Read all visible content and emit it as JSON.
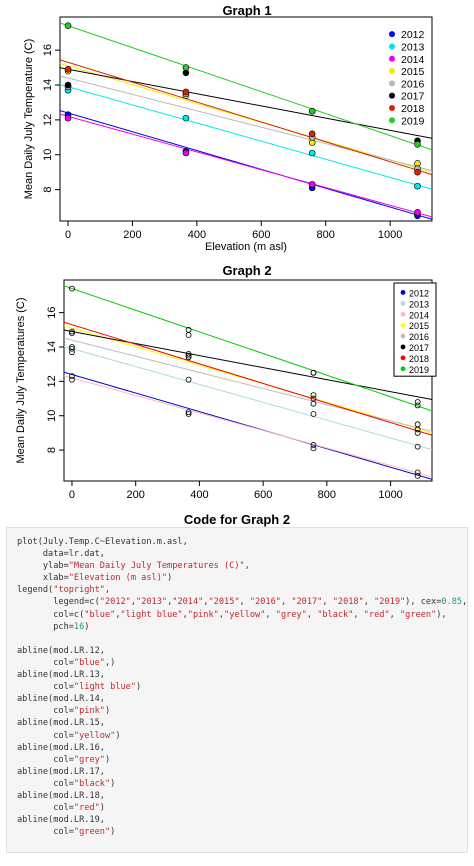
{
  "graph1_title": "Graph 1",
  "graph2_title": "Graph 2",
  "code_title": "Code for Graph 2",
  "colors": {
    "2012": "#0000ee",
    "2013": "#00e5ee",
    "2014": "#ee00ee",
    "2015": "#eeee00",
    "2016": "#b8b8b8",
    "2017": "#000000",
    "2018": "#dd2200",
    "2019": "#22cc22"
  },
  "chart_data": [
    {
      "type": "scatter",
      "title": "Graph 1",
      "xlabel": "Elevation (m asl)",
      "ylabel": "Mean Daily July Temperature (C)",
      "xlim": [
        -25,
        1130
      ],
      "ylim": [
        6.2,
        17.9
      ],
      "xticks": [
        0,
        200,
        400,
        600,
        800,
        1000
      ],
      "yticks": [
        8,
        10,
        12,
        14,
        16
      ],
      "legend_position": "top-right",
      "point_style": "filled",
      "series": [
        {
          "name": "2012",
          "color": "#0000ee",
          "x": [
            0,
            366,
            758,
            1085
          ],
          "y": [
            12.3,
            10.2,
            8.1,
            6.5
          ],
          "fit": [
            12.4,
            -0.0054
          ]
        },
        {
          "name": "2013",
          "color": "#00e5ee",
          "x": [
            0,
            366,
            758,
            1085
          ],
          "y": [
            13.7,
            12.1,
            10.1,
            8.2
          ],
          "fit": [
            13.9,
            -0.0052
          ]
        },
        {
          "name": "2014",
          "color": "#ee00ee",
          "x": [
            0,
            366,
            758,
            1085
          ],
          "y": [
            12.1,
            10.1,
            8.3,
            6.7
          ],
          "fit": [
            12.2,
            -0.0051
          ]
        },
        {
          "name": "2015",
          "color": "#eeee00",
          "x": [
            0,
            366,
            758,
            1085
          ],
          "y": [
            14.8,
            13.4,
            10.7,
            9.5
          ],
          "fit": [
            15.1,
            -0.0054
          ]
        },
        {
          "name": "2016",
          "color": "#b8b8b8",
          "x": [
            0,
            366,
            758,
            1085
          ],
          "y": [
            13.9,
            13.5,
            11.0,
            9.2
          ],
          "fit": [
            14.4,
            -0.0047
          ]
        },
        {
          "name": "2017",
          "color": "#000000",
          "x": [
            0,
            366,
            758,
            1085
          ],
          "y": [
            14.0,
            14.7,
            12.5,
            10.8
          ],
          "fit": [
            14.9,
            -0.0035
          ]
        },
        {
          "name": "2018",
          "color": "#dd2200",
          "x": [
            0,
            366,
            758,
            1085
          ],
          "y": [
            14.9,
            13.6,
            11.2,
            9.0
          ],
          "fit": [
            15.3,
            -0.0057
          ]
        },
        {
          "name": "2019",
          "color": "#22cc22",
          "x": [
            0,
            366,
            758,
            1085
          ],
          "y": [
            17.4,
            15.0,
            12.5,
            10.6
          ],
          "fit": [
            17.4,
            -0.0063
          ]
        }
      ]
    },
    {
      "type": "scatter",
      "title": "Graph 2",
      "xlabel": "",
      "ylabel": "Mean Daily July Temperatures (C)",
      "xlim": [
        -25,
        1130
      ],
      "ylim": [
        6.2,
        17.9
      ],
      "xticks": [
        0,
        200,
        400,
        600,
        800,
        1000
      ],
      "yticks": [
        8,
        10,
        12,
        14,
        16
      ],
      "legend_position": "top-right",
      "point_style": "open",
      "series": [
        {
          "name": "2012",
          "color": "blue",
          "x": [
            0,
            366,
            758,
            1085
          ],
          "y": [
            12.3,
            10.2,
            8.1,
            6.5
          ],
          "fit": [
            12.4,
            -0.0054
          ]
        },
        {
          "name": "2013",
          "color": "light blue",
          "x": [
            0,
            366,
            758,
            1085
          ],
          "y": [
            13.7,
            12.1,
            10.1,
            8.2
          ],
          "fit": [
            13.9,
            -0.0052
          ]
        },
        {
          "name": "2014",
          "color": "pink",
          "x": [
            0,
            366,
            758,
            1085
          ],
          "y": [
            12.1,
            10.1,
            8.3,
            6.7
          ],
          "fit": [
            12.2,
            -0.0051
          ]
        },
        {
          "name": "2015",
          "color": "yellow",
          "x": [
            0,
            366,
            758,
            1085
          ],
          "y": [
            14.8,
            13.4,
            10.7,
            9.5
          ],
          "fit": [
            15.1,
            -0.0054
          ]
        },
        {
          "name": "2016",
          "color": "grey",
          "x": [
            0,
            366,
            758,
            1085
          ],
          "y": [
            13.9,
            13.5,
            11.0,
            9.2
          ],
          "fit": [
            14.4,
            -0.0047
          ]
        },
        {
          "name": "2017",
          "color": "black",
          "x": [
            0,
            366,
            758,
            1085
          ],
          "y": [
            14.0,
            14.7,
            12.5,
            10.8
          ],
          "fit": [
            14.9,
            -0.0035
          ]
        },
        {
          "name": "2018",
          "color": "red",
          "x": [
            0,
            366,
            758,
            1085
          ],
          "y": [
            14.9,
            13.6,
            11.2,
            9.0
          ],
          "fit": [
            15.3,
            -0.0057
          ]
        },
        {
          "name": "2019",
          "color": "green",
          "x": [
            0,
            366,
            758,
            1085
          ],
          "y": [
            17.4,
            15.0,
            12.5,
            10.6
          ],
          "fit": [
            17.4,
            -0.0063
          ]
        }
      ]
    }
  ],
  "graph2_colors": {
    "blue": "#0000cc",
    "light blue": "#add8e6",
    "pink": "#ffb6c1",
    "yellow": "#ffff00",
    "grey": "#bebebe",
    "black": "#000000",
    "red": "#ff0000",
    "green": "#00cc00"
  },
  "code": {
    "lines": [
      "plot(July.Temp.C~Elevation.m.asl,",
      "     data=lr.dat,",
      "     ylab=\"Mean Daily July Temperatures (C)\",",
      "     xlab=\"Elevation (m asl)\")",
      "legend(\"topright\",",
      "       legend=c(\"2012\",\"2013\",\"2014\",\"2015\", \"2016\", \"2017\", \"2018\", \"2019\"), cex=0.85,",
      "       col=c(\"blue\",\"light blue\",\"pink\",\"yellow\", \"grey\", \"black\", \"red\", \"green\"),",
      "       pch=16)",
      "",
      "abline(mod.LR.12,",
      "       col=\"blue\",)",
      "abline(mod.LR.13,",
      "       col=\"light blue\")",
      "abline(mod.LR.14,",
      "       col=\"pink\")",
      "abline(mod.LR.15,",
      "       col=\"yellow\")",
      "abline(mod.LR.16,",
      "       col=\"grey\")",
      "abline(mod.LR.17,",
      "       col=\"black\")",
      "abline(mod.LR.18,",
      "       col=\"red\")",
      "abline(mod.LR.19,",
      "       col=\"green\")"
    ]
  }
}
